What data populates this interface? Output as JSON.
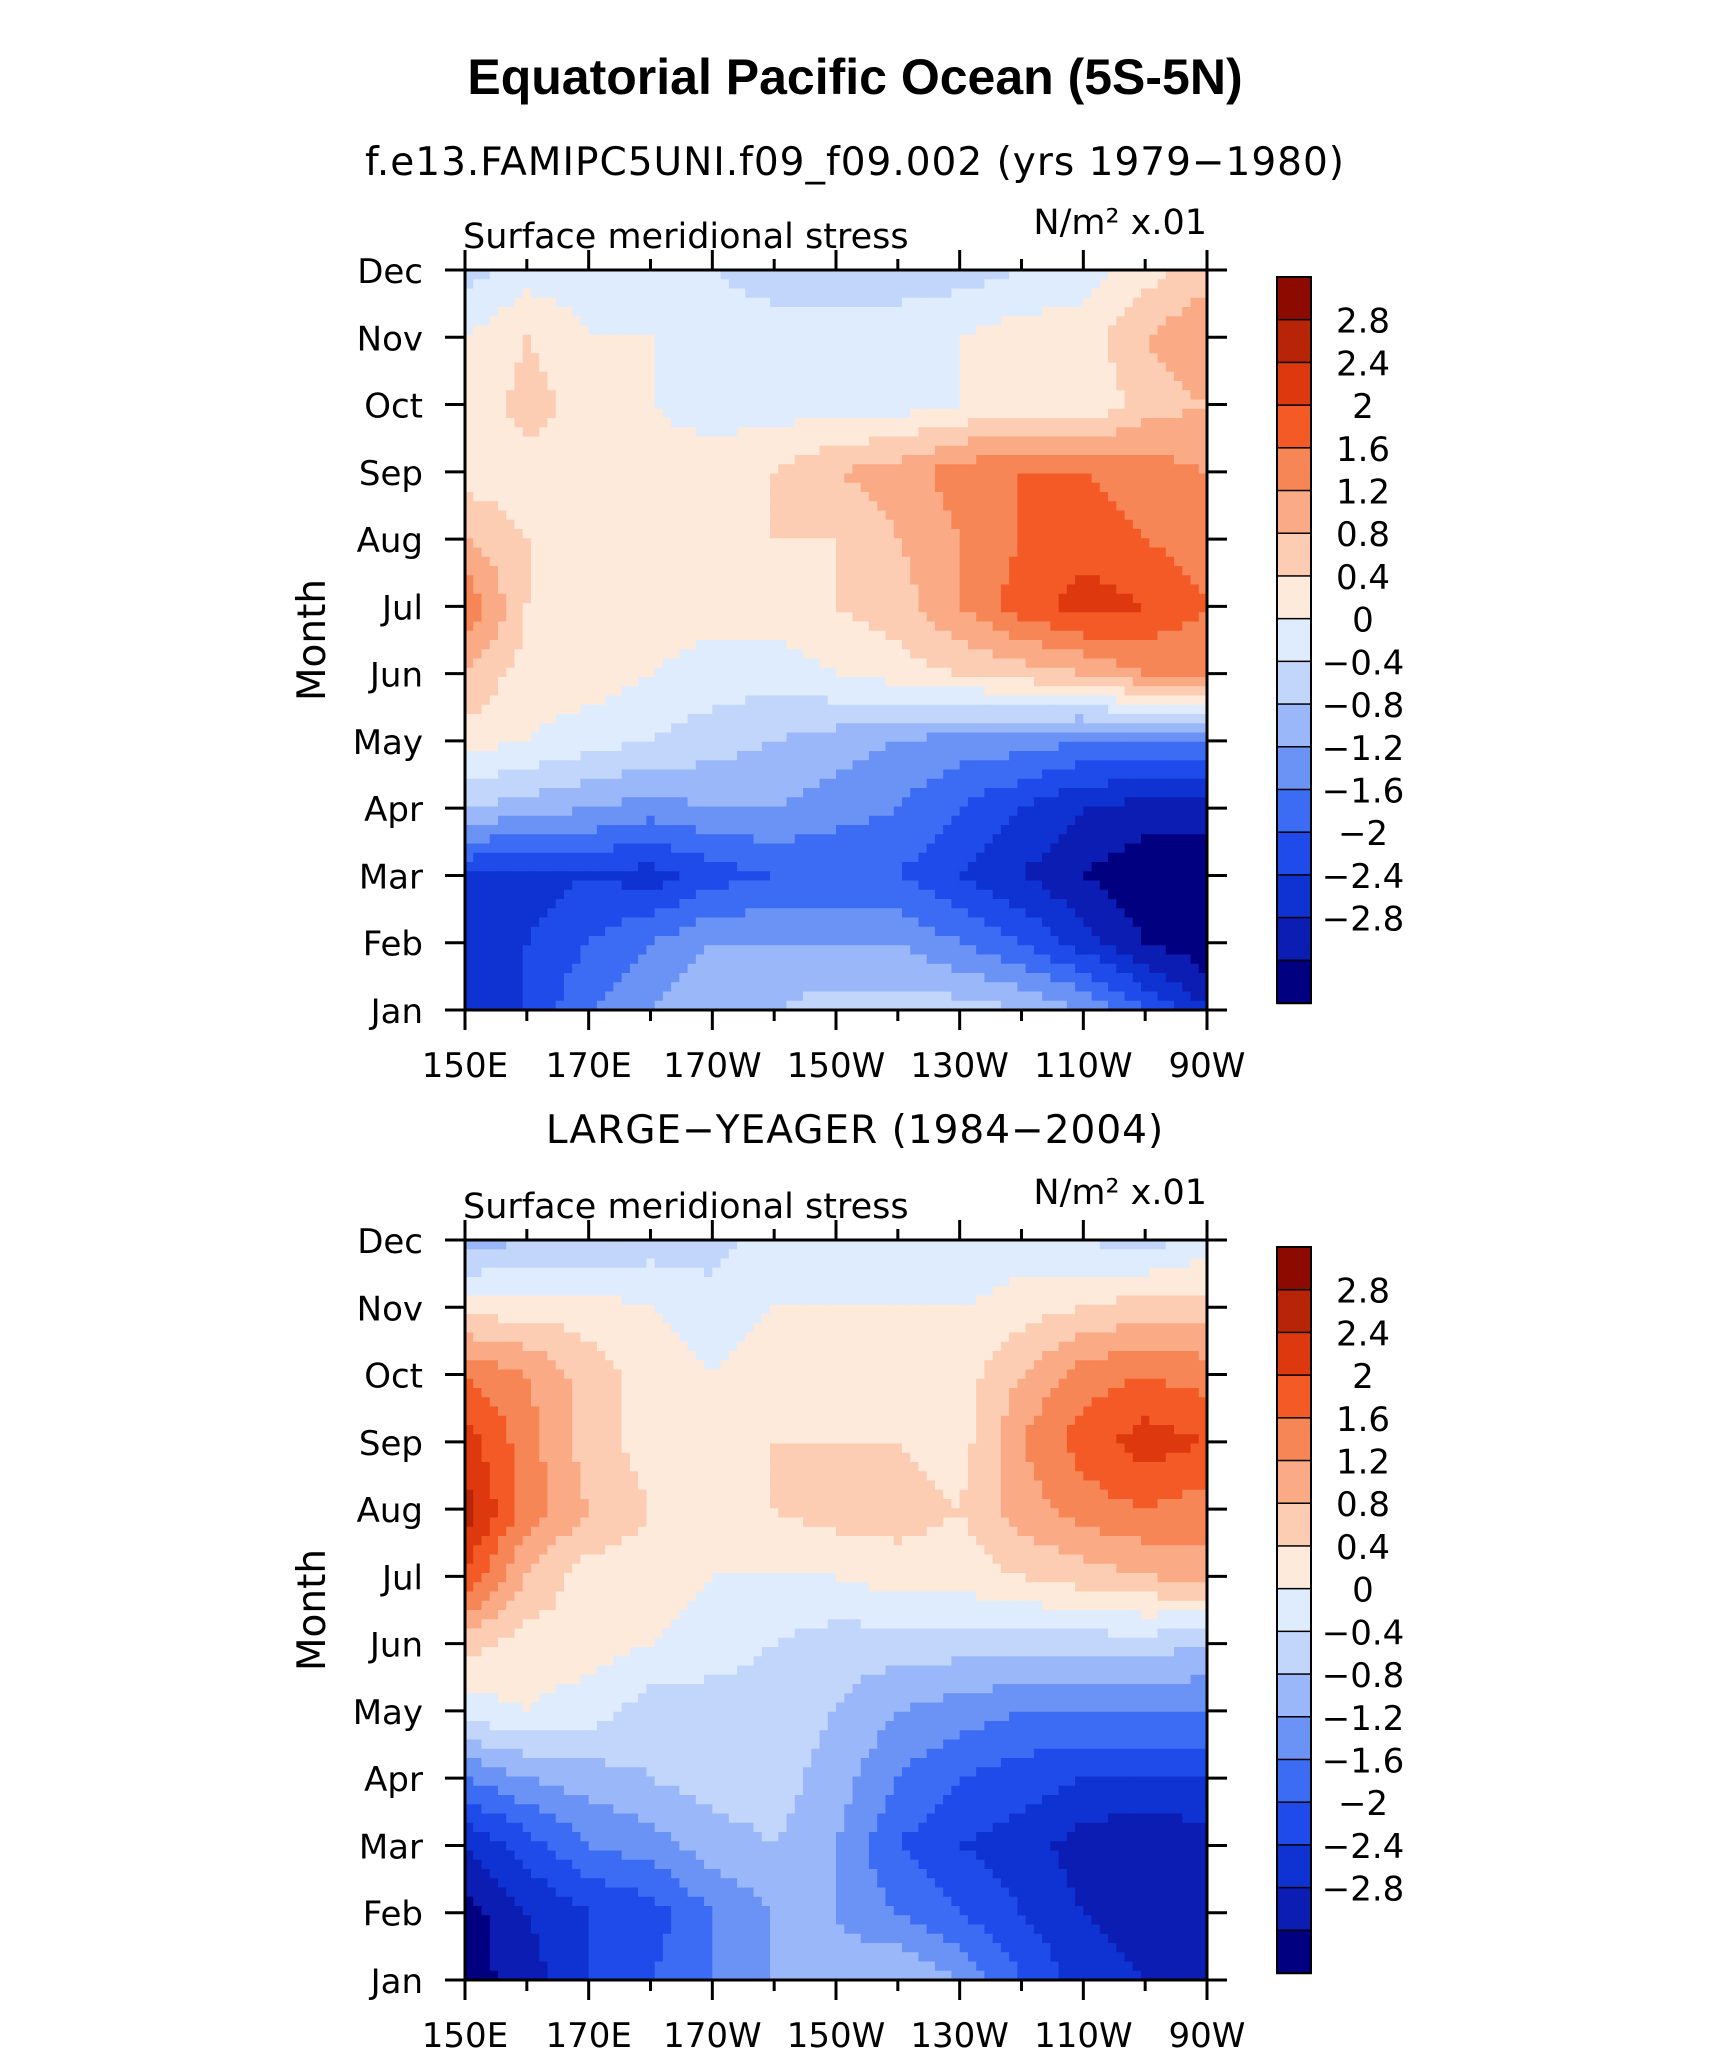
{
  "title": "Equatorial Pacific Ocean (5S-5N)",
  "colorbar": {
    "levels": [
      -3.2,
      -2.8,
      -2.4,
      -2.0,
      -1.6,
      -1.2,
      -0.8,
      -0.4,
      0,
      0.4,
      0.8,
      1.2,
      1.6,
      2.0,
      2.4,
      2.8,
      3.2
    ],
    "colors": [
      "#000080",
      "#0b1db3",
      "#0f32d2",
      "#1e4bea",
      "#3c6cf3",
      "#6b93f6",
      "#9ab8f9",
      "#c2d6fb",
      "#dfecfd",
      "#fdeadb",
      "#fcccb3",
      "#fbaa86",
      "#f78656",
      "#f35a26",
      "#de380f",
      "#b82407",
      "#8c0a00"
    ],
    "labels": [
      "2.8",
      "2.4",
      "2",
      "1.6",
      "1.2",
      "0.8",
      "0.4",
      "0",
      "−0.4",
      "−0.8",
      "−1.2",
      "−1.6",
      "−2",
      "−2.4",
      "−2.8"
    ]
  },
  "chart_data": [
    {
      "type": "heatmap",
      "title": "f.e13.FAMIPC5UNI.f09_f09.002 (yrs 1979−1980)",
      "left_label": "Surface meridional stress",
      "units_label": "N/m² x.01",
      "ylabel": "Month",
      "x_labels": [
        "150E",
        "170E",
        "170W",
        "150W",
        "130W",
        "110W",
        "90W"
      ],
      "y_labels": [
        "Jan",
        "Feb",
        "Mar",
        "Apr",
        "May",
        "Jun",
        "Jul",
        "Aug",
        "Sep",
        "Oct",
        "Nov",
        "Dec"
      ],
      "x_values": [
        150,
        160,
        170,
        180,
        190,
        200,
        210,
        220,
        230,
        240,
        250,
        260,
        270
      ],
      "values": [
        [
          -2.4,
          -2.0,
          -1.2,
          -0.8,
          -0.4,
          -0.4,
          -0.2,
          -0.2,
          -0.2,
          -0.4,
          -0.8,
          -1.6,
          -2.4
        ],
        [
          -2.2,
          -2.0,
          -1.6,
          -1.2,
          -0.8,
          -0.8,
          -0.8,
          -0.8,
          -1.2,
          -1.6,
          -2.2,
          -2.8,
          -3.1
        ],
        [
          -2.0,
          -2.2,
          -2.0,
          -2.2,
          -1.8,
          -1.6,
          -1.6,
          -1.6,
          -2.0,
          -2.4,
          -2.8,
          -3.1,
          -3.1
        ],
        [
          -0.4,
          -0.6,
          -0.8,
          -1.0,
          -0.8,
          -0.8,
          -1.0,
          -1.2,
          -1.6,
          -2.0,
          -2.4,
          -2.6,
          -2.6
        ],
        [
          0.6,
          0.4,
          0.2,
          0.0,
          -0.2,
          -0.4,
          -0.6,
          -0.8,
          -1.0,
          -1.0,
          -1.2,
          -1.2,
          -1.2
        ],
        [
          1.2,
          0.6,
          0.6,
          0.4,
          0.2,
          0.2,
          0.4,
          0.6,
          0.8,
          1.0,
          1.2,
          1.6,
          1.6
        ],
        [
          2.0,
          0.8,
          0.6,
          0.6,
          0.6,
          0.6,
          0.8,
          1.0,
          1.6,
          2.2,
          2.6,
          2.4,
          2.0
        ],
        [
          1.2,
          0.8,
          0.6,
          0.6,
          0.6,
          0.8,
          0.8,
          1.2,
          1.6,
          2.0,
          2.2,
          2.0,
          1.8
        ],
        [
          0.6,
          0.6,
          0.6,
          0.6,
          0.6,
          0.8,
          1.2,
          1.4,
          1.8,
          2.0,
          2.0,
          1.8,
          1.6
        ],
        [
          0.4,
          1.0,
          0.6,
          0.4,
          0.2,
          0.2,
          0.2,
          0.2,
          0.4,
          0.6,
          0.4,
          1.0,
          1.2
        ],
        [
          0.4,
          0.8,
          0.4,
          0.4,
          0.2,
          0.2,
          0.2,
          0.2,
          0.4,
          0.6,
          0.6,
          1.2,
          1.6
        ],
        [
          -0.2,
          0.2,
          0.2,
          0.2,
          0.0,
          -0.2,
          -0.2,
          -0.2,
          -0.2,
          0.0,
          0.2,
          0.6,
          1.0
        ]
      ]
    },
    {
      "type": "heatmap",
      "title": "LARGE−YEAGER (1984−2004)",
      "left_label": "Surface meridional stress",
      "units_label": "N/m² x.01",
      "ylabel": "Month",
      "x_labels": [
        "150E",
        "170E",
        "170W",
        "150W",
        "130W",
        "110W",
        "90W"
      ],
      "y_labels": [
        "Jan",
        "Feb",
        "Mar",
        "Apr",
        "May",
        "Jun",
        "Jul",
        "Aug",
        "Sep",
        "Oct",
        "Nov",
        "Dec"
      ],
      "x_values": [
        150,
        160,
        170,
        180,
        190,
        200,
        210,
        220,
        230,
        240,
        250,
        260,
        270
      ],
      "values": [
        [
          -3.0,
          -2.6,
          -2.0,
          -1.6,
          -1.2,
          -0.8,
          -0.6,
          -0.4,
          -0.8,
          -1.6,
          -2.2,
          -2.4,
          -2.4
        ],
        [
          -3.0,
          -2.4,
          -2.0,
          -1.8,
          -1.2,
          -0.8,
          -0.8,
          -1.2,
          -1.6,
          -2.0,
          -2.4,
          -2.6,
          -2.4
        ],
        [
          -2.4,
          -1.8,
          -1.2,
          -1.0,
          -0.6,
          -0.4,
          -0.8,
          -1.6,
          -2.0,
          -2.2,
          -2.6,
          -2.8,
          -2.6
        ],
        [
          -1.2,
          -0.8,
          -0.6,
          -0.4,
          -0.2,
          -0.2,
          -0.6,
          -1.2,
          -1.6,
          -1.8,
          -2.0,
          -2.0,
          -2.0
        ],
        [
          0.2,
          0.4,
          0.2,
          -0.2,
          -0.2,
          -0.2,
          -0.4,
          -0.8,
          -1.0,
          -1.2,
          -1.2,
          -1.2,
          -1.2
        ],
        [
          1.0,
          0.6,
          0.6,
          0.4,
          0.2,
          0.0,
          -0.2,
          -0.2,
          -0.2,
          -0.2,
          -0.2,
          -0.2,
          -0.4
        ],
        [
          2.4,
          1.2,
          0.6,
          0.6,
          0.4,
          0.4,
          0.4,
          0.6,
          0.6,
          0.8,
          1.0,
          1.2,
          1.4
        ],
        [
          3.0,
          1.8,
          1.2,
          0.8,
          0.6,
          0.8,
          1.0,
          1.0,
          0.8,
          1.4,
          1.8,
          2.0,
          1.8
        ],
        [
          2.6,
          1.8,
          1.0,
          0.6,
          0.6,
          0.8,
          0.8,
          0.8,
          0.6,
          1.6,
          2.2,
          2.6,
          2.4
        ],
        [
          2.0,
          1.6,
          1.0,
          0.6,
          0.4,
          0.6,
          0.8,
          0.6,
          0.6,
          1.2,
          1.8,
          2.0,
          1.8
        ],
        [
          0.6,
          0.6,
          0.6,
          0.4,
          0.2,
          0.4,
          0.4,
          0.4,
          0.4,
          0.6,
          0.8,
          1.0,
          1.0
        ],
        [
          -0.6,
          -0.4,
          -0.4,
          -0.2,
          -0.2,
          0.2,
          0.2,
          0.2,
          0.0,
          0.2,
          0.0,
          -0.2,
          0.2
        ]
      ]
    }
  ]
}
